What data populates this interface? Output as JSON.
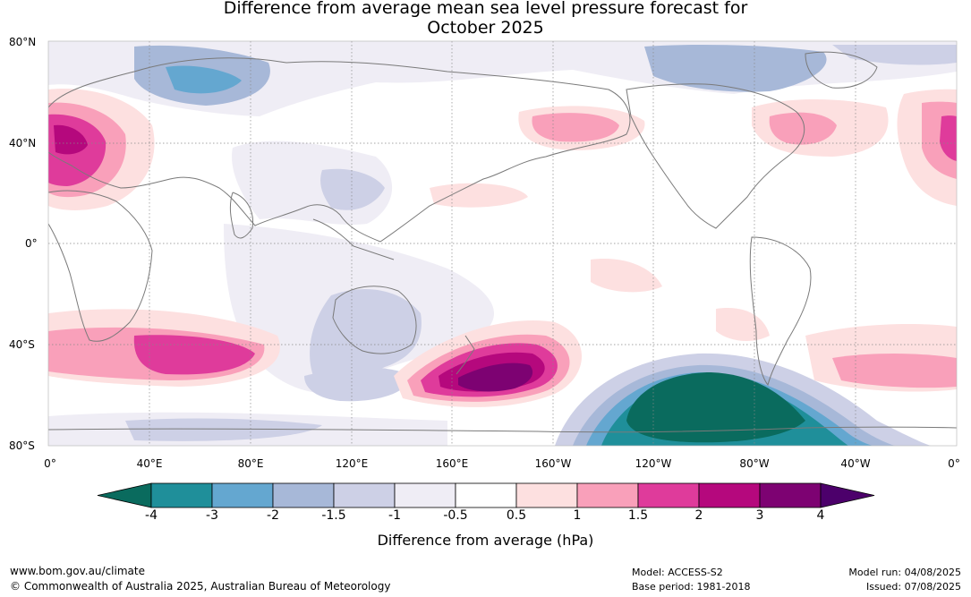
{
  "title": {
    "line1": "Difference from average mean sea level pressure forecast for",
    "line2": "October 2025"
  },
  "map": {
    "lat_labels": [
      "80°N",
      "40°N",
      "0°",
      "40°S",
      "80°S"
    ],
    "lon_labels": [
      "0°",
      "40°E",
      "80°E",
      "120°E",
      "160°E",
      "160°W",
      "120°W",
      "80°W",
      "40°W",
      "0°"
    ]
  },
  "colorbar": {
    "title": "Difference from average (hPa)",
    "ticks": [
      "-4",
      "-3",
      "-2",
      "-1.5",
      "-1",
      "-0.5",
      "0.5",
      "1",
      "1.5",
      "2",
      "3",
      "4"
    ],
    "colors": [
      "#0a6b5e",
      "#1f8f9a",
      "#64a7d0",
      "#a7b8d8",
      "#cdd0e6",
      "#efedf5",
      "#ffffff",
      "#fde0e0",
      "#f9a0ba",
      "#df3b9b",
      "#b5087d",
      "#7d0272",
      "#4c006b"
    ]
  },
  "footer": {
    "url": "www.bom.gov.au/climate",
    "copyright": "© Commonwealth of Australia 2025, Australian Bureau of Meteorology",
    "model": "Model: ACCESS-S2",
    "base_period": "Base period: 1981-2018",
    "model_run": "Model run: 04/08/2025",
    "issued": "Issued: 07/08/2025"
  }
}
